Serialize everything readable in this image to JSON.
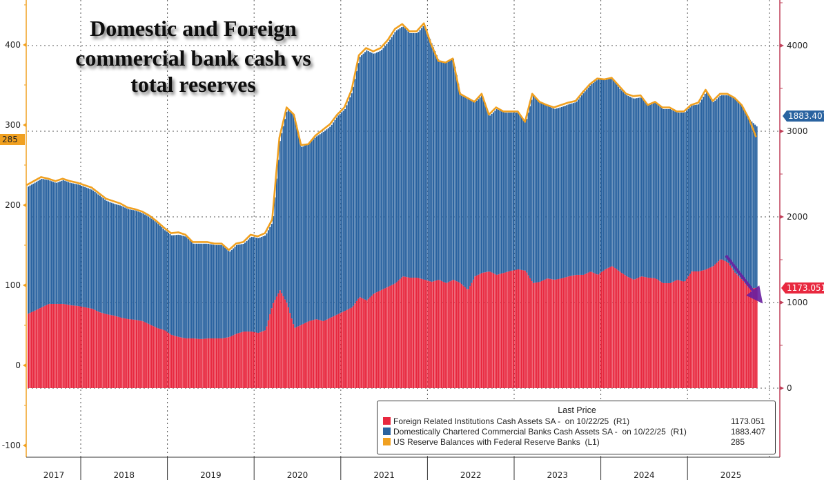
{
  "title_lines": [
    "Domestic and Foreign",
    "commercial bank cash vs",
    "total reserves"
  ],
  "legend": {
    "header": "Last Price",
    "items": [
      {
        "label": "Foreign Related Institutions Cash Assets SA -  on 10/22/25  (R1)",
        "value": "1173.051",
        "color": "#e8283f"
      },
      {
        "label": "Domestically Chartered Commercial Banks Cash Assets SA -  on 10/22/25  (R1)",
        "value": "1883.407",
        "color": "#2a63a0"
      },
      {
        "label": "US Reserve Balances with Federal Reserve Banks  (L1)",
        "value": "285",
        "color": "#f0a020"
      }
    ]
  },
  "badges": {
    "left_last": "285",
    "right_domestic": "1883.407",
    "right_foreign": "1173.051"
  },
  "chart_data": {
    "type": "bar",
    "stacked": true,
    "left_axis": {
      "ticks": [
        "400",
        "300",
        "200",
        "100",
        "0",
        "-100"
      ],
      "range": [
        -100,
        450
      ]
    },
    "right_axis": {
      "ticks": [
        "4000",
        "3000",
        "2000",
        "1000",
        "0"
      ],
      "range": [
        0,
        4500
      ]
    },
    "x_ticks": [
      "2017",
      "2018",
      "2019",
      "2020",
      "2021",
      "2022",
      "2023",
      "2024",
      "2025"
    ],
    "grid": true,
    "legend_position": "bottom-right",
    "dates": [
      "2017-05",
      "2017-06",
      "2017-07",
      "2017-08",
      "2017-09",
      "2017-10",
      "2017-11",
      "2017-12",
      "2018-01",
      "2018-02",
      "2018-03",
      "2018-04",
      "2018-05",
      "2018-06",
      "2018-07",
      "2018-08",
      "2018-09",
      "2018-10",
      "2018-11",
      "2018-12",
      "2019-01",
      "2019-02",
      "2019-03",
      "2019-04",
      "2019-05",
      "2019-06",
      "2019-07",
      "2019-08",
      "2019-09",
      "2019-10",
      "2019-11",
      "2019-12",
      "2020-01",
      "2020-02",
      "2020-03",
      "2020-04",
      "2020-05",
      "2020-06",
      "2020-07",
      "2020-08",
      "2020-09",
      "2020-10",
      "2020-11",
      "2020-12",
      "2021-01",
      "2021-02",
      "2021-03",
      "2021-04",
      "2021-05",
      "2021-06",
      "2021-07",
      "2021-08",
      "2021-09",
      "2021-10",
      "2021-11",
      "2021-12",
      "2022-01",
      "2022-02",
      "2022-03",
      "2022-04",
      "2022-05",
      "2022-06",
      "2022-07",
      "2022-08",
      "2022-09",
      "2022-10",
      "2022-11",
      "2022-12",
      "2023-01",
      "2023-02",
      "2023-03",
      "2023-04",
      "2023-05",
      "2023-06",
      "2023-07",
      "2023-08",
      "2023-09",
      "2023-10",
      "2023-11",
      "2023-12",
      "2024-01",
      "2024-02",
      "2024-03",
      "2024-04",
      "2024-05",
      "2024-06",
      "2024-07",
      "2024-08",
      "2024-09",
      "2024-10",
      "2024-11",
      "2024-12",
      "2025-01",
      "2025-02",
      "2025-03",
      "2025-04",
      "2025-05",
      "2025-06",
      "2025-07",
      "2025-08",
      "2025-09",
      "2025-10"
    ],
    "series": [
      {
        "name": "Foreign Related Institutions Cash Assets SA",
        "axis": "right",
        "kind": "bar",
        "color": "#e8283f",
        "values": [
          863,
          903,
          944,
          984,
          984,
          984,
          968,
          960,
          944,
          927,
          887,
          863,
          847,
          823,
          806,
          798,
          782,
          742,
          702,
          677,
          621,
          597,
          581,
          581,
          573,
          581,
          581,
          581,
          597,
          637,
          661,
          661,
          645,
          677,
          984,
          1145,
          984,
          702,
          742,
          782,
          806,
          782,
          823,
          863,
          903,
          944,
          1065,
          1024,
          1105,
          1145,
          1185,
          1226,
          1306,
          1290,
          1290,
          1266,
          1242,
          1266,
          1226,
          1266,
          1226,
          1145,
          1306,
          1347,
          1363,
          1323,
          1347,
          1371,
          1387,
          1371,
          1226,
          1242,
          1282,
          1266,
          1282,
          1306,
          1323,
          1323,
          1363,
          1323,
          1387,
          1427,
          1363,
          1306,
          1266,
          1306,
          1290,
          1282,
          1226,
          1226,
          1266,
          1242,
          1363,
          1363,
          1387,
          1427,
          1508,
          1468,
          1347,
          1266,
          1161,
          1173.051
        ]
      },
      {
        "name": "Domestically Chartered Commercial Banks Cash Assets SA",
        "axis": "right",
        "kind": "bar",
        "color": "#2a63a0",
        "values": [
          1485,
          1493,
          1501,
          1445,
          1412,
          1445,
          1428,
          1420,
          1404,
          1389,
          1364,
          1324,
          1307,
          1307,
          1284,
          1276,
          1260,
          1251,
          1227,
          1171,
          1163,
          1195,
          1187,
          1106,
          1114,
          1106,
          1090,
          1090,
          993,
          1034,
          1026,
          1107,
          1107,
          1107,
          961,
          1751,
          2275,
          2477,
          2073,
          2074,
          2130,
          2211,
          2234,
          2316,
          2356,
          2516,
          2798,
          2920,
          2798,
          2799,
          2856,
          2943,
          2920,
          2855,
          2855,
          2976,
          2782,
          2557,
          2573,
          2581,
          2194,
          2235,
          2033,
          2073,
          1815,
          1936,
          1871,
          1847,
          1831,
          1727,
          2194,
          2097,
          2017,
          1993,
          2001,
          2009,
          2016,
          2121,
          2178,
          2282,
          2210,
          2194,
          2137,
          2114,
          2114,
          2090,
          2009,
          2057,
          2033,
          2033,
          1952,
          1976,
          1936,
          1952,
          2073,
          1912,
          1912,
          1952,
          2033,
          2033,
          1977,
          1883.407
        ]
      },
      {
        "name": "US Reserve Balances with Federal Reserve Banks",
        "axis": "left",
        "kind": "line",
        "color": "#f0a020",
        "values": [
          225,
          230,
          235,
          233,
          230,
          233,
          230,
          228,
          225,
          222,
          215,
          208,
          205,
          202,
          197,
          195,
          192,
          187,
          180,
          172,
          165,
          166,
          163,
          154,
          154,
          154,
          152,
          152,
          144,
          152,
          154,
          163,
          161,
          165,
          182,
          284,
          322,
          313,
          275,
          276,
          287,
          294,
          301,
          313,
          322,
          344,
          387,
          396,
          392,
          396,
          406,
          420,
          426,
          417,
          417,
          427,
          401,
          380,
          378,
          383,
          339,
          334,
          329,
          339,
          313,
          322,
          317,
          317,
          317,
          304,
          339,
          329,
          325,
          322,
          325,
          328,
          330,
          341,
          351,
          358,
          357,
          359,
          349,
          339,
          336,
          337,
          325,
          329,
          322,
          322,
          317,
          317,
          325,
          328,
          344,
          330,
          339,
          339,
          334,
          325,
          308,
          285
        ]
      }
    ],
    "annotation": {
      "type": "arrow",
      "color": "#6a1fa0",
      "meaning": "declining foreign cash assets"
    }
  }
}
